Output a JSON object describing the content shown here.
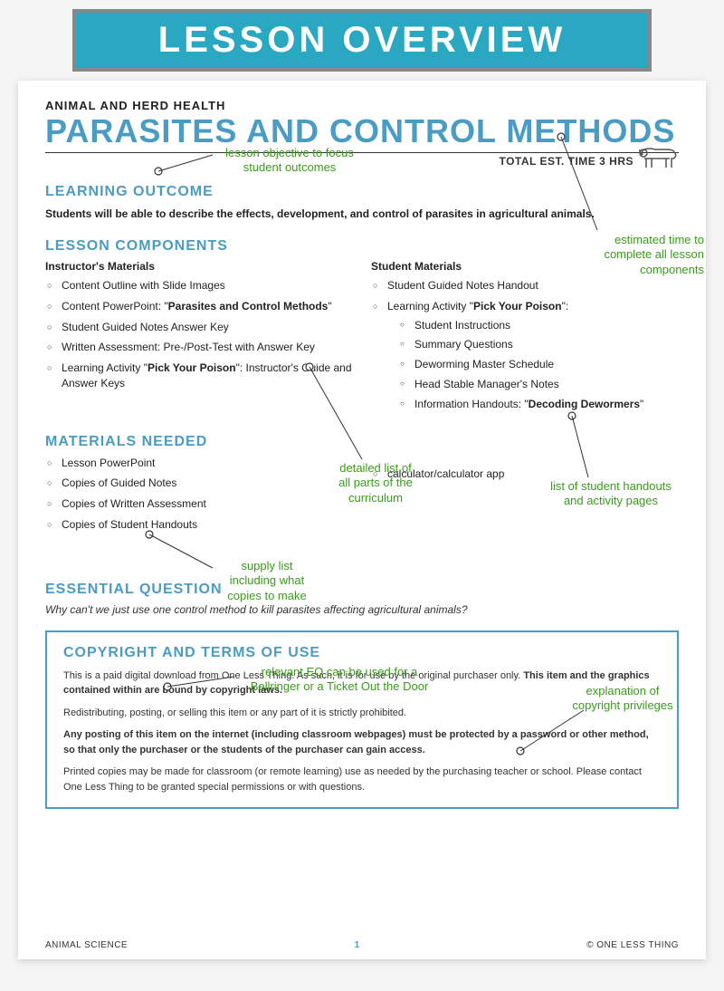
{
  "banner": {
    "text": "LESSON OVERVIEW"
  },
  "colors": {
    "teal_banner": "#2aa8c2",
    "blue_heading": "#4a9cc4",
    "annotation_green": "#3a9b1a",
    "banner_border": "#888888",
    "page_bg": "#ffffff",
    "body_bg": "#f5f5f5"
  },
  "header": {
    "subject": "ANIMAL AND HERD HEALTH",
    "title": "PARASITES AND CONTROL METHODS",
    "time_label": "TOTAL EST. TIME 3 HRS"
  },
  "sections": {
    "outcome": {
      "head": "LEARNING OUTCOME",
      "text": "Students will be able to describe the effects, development, and control of parasites in agricultural animals."
    },
    "components": {
      "head": "LESSON COMPONENTS",
      "instructor_head": "Instructor's Materials",
      "instructor_items": {
        "i0": "Content Outline with Slide Images",
        "i1_a": "Content PowerPoint: \"",
        "i1_b": "Parasites and Control Methods",
        "i1_c": "\"",
        "i2": "Student Guided Notes Answer Key",
        "i3": "Written Assessment: Pre-/Post-Test with Answer Key",
        "i4_a": "Learning Activity \"",
        "i4_b": "Pick Your Poison",
        "i4_c": "\": Instructor's Guide and Answer Keys"
      },
      "student_head": "Student Materials",
      "student_items": {
        "s0": "Student Guided Notes Handout",
        "s1_a": "Learning Activity \"",
        "s1_b": "Pick Your Poison",
        "s1_c": "\":",
        "sub0": "Student Instructions",
        "sub1": "Summary Questions",
        "sub2": "Deworming Master Schedule",
        "sub3": "Head Stable Manager's Notes",
        "sub4_a": "Information Handouts: \"",
        "sub4_b": "Decoding Dewormers",
        "sub4_c": "\""
      }
    },
    "materials": {
      "head": "MATERIALS NEEDED",
      "left": {
        "m0": "Lesson PowerPoint",
        "m1": "Copies of Guided Notes",
        "m2": "Copies of Written Assessment",
        "m3": "Copies of Student Handouts"
      },
      "right": {
        "r0": "calculator/calculator app"
      }
    },
    "eq": {
      "head": "ESSENTIAL QUESTION",
      "text": "Why can't we just use one control method to kill parasites affecting agricultural animals?"
    },
    "copyright": {
      "head": "COPYRIGHT AND TERMS OF USE",
      "p1_a": "This is a paid digital download from One Less Thing. As such, it is for use by the original purchaser only. ",
      "p1_b": "This item and the graphics contained within are bound by copyright laws.",
      "p2": "Redistributing, posting, or selling this item or any part of it is strictly prohibited.",
      "p3": "Any posting of this item on the internet (including classroom webpages) must be protected by a password or other method, so that only the purchaser or the students of the purchaser can gain access.",
      "p4": "Printed copies may be made for classroom (or remote learning) use as needed by the purchasing teacher or school. Please contact One Less Thing to be granted special permissions or with questions."
    }
  },
  "footer": {
    "left": "ANIMAL SCIENCE",
    "page": "1",
    "right": "© ONE LESS THING"
  },
  "annotations": {
    "a_objective": "lesson objective to focus\nstudent  outcomes",
    "a_time": "estimated time to\ncomplete all lesson\ncomponents",
    "a_curriculum": "detailed list of\nall parts of the\ncurriculum",
    "a_handouts": "list of student handouts\nand activity pages",
    "a_supply": "supply list\nincluding what\ncopies to make",
    "a_eq": "relevant EQ can be used for a\nBellringer or a Ticket Out the Door",
    "a_copyright": "explanation of\ncopyright privileges"
  }
}
